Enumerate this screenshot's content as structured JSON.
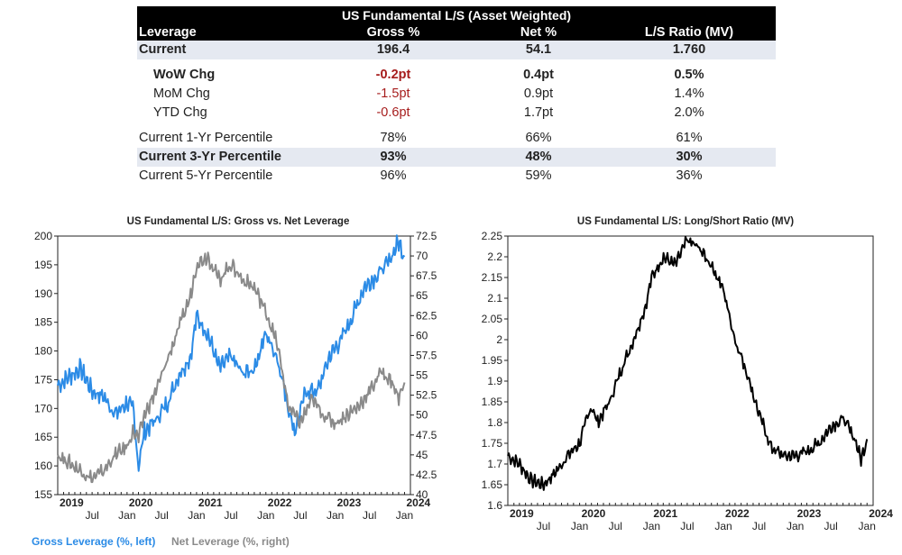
{
  "table": {
    "title": "US Fundamental L/S (Asset Weighted)",
    "headers": [
      "Leverage",
      "Gross %",
      "Net %",
      "L/S Ratio (MV)"
    ],
    "rows": [
      {
        "label": "Current",
        "gross": "196.4",
        "net": "54.1",
        "ratio": "1.760"
      },
      {
        "label": "WoW Chg",
        "gross": "-0.2pt",
        "net": "0.4pt",
        "ratio": "0.5%"
      },
      {
        "label": "MoM Chg",
        "gross": "-1.5pt",
        "net": "0.9pt",
        "ratio": "1.4%"
      },
      {
        "label": "YTD Chg",
        "gross": "-0.6pt",
        "net": "1.7pt",
        "ratio": "2.0%"
      },
      {
        "label": "Current 1-Yr Percentile",
        "gross": "78%",
        "net": "66%",
        "ratio": "61%"
      },
      {
        "label": "Current 3-Yr Percentile",
        "gross": "93%",
        "net": "48%",
        "ratio": "30%"
      },
      {
        "label": "Current 5-Yr Percentile",
        "gross": "96%",
        "net": "59%",
        "ratio": "36%"
      }
    ],
    "colors": {
      "negative": "#a61c1c",
      "header_bg": "#000000",
      "shade": "#e5e9f1"
    }
  },
  "chart_data": [
    {
      "type": "line",
      "title": "US Fundamental L/S: Gross vs. Net Leverage",
      "x_tick_labels": [
        "Jul",
        "Jan",
        "Jul",
        "Jan",
        "Jul",
        "Jan",
        "Jul",
        "Jan",
        "Jul",
        "Jan"
      ],
      "year_labels": [
        "2019",
        "2020",
        "2021",
        "2022",
        "2023",
        "2024"
      ],
      "xlim": [
        "2019-01",
        "2024-02"
      ],
      "y_left": {
        "ticks": [
          155,
          160,
          165,
          170,
          175,
          180,
          185,
          190,
          195,
          200
        ],
        "lim": [
          155,
          200
        ]
      },
      "y_right": {
        "ticks": [
          "40",
          "42.5",
          "45",
          "47.5",
          "50",
          "52.5",
          "55",
          "57.5",
          "60",
          "62.5",
          "65",
          "67.5",
          "70",
          "72.5"
        ],
        "lim": [
          40,
          72.5
        ]
      },
      "legend": [
        "Gross Leverage (%, left)",
        "Net Leverage (%, right)"
      ],
      "legend_placement": "bottom",
      "series": [
        {
          "name": "Gross Leverage (%, left)",
          "axis": "left",
          "color": "#2b8be6",
          "x": [
            "2019-01",
            "2019-03",
            "2019-05",
            "2019-07",
            "2019-09",
            "2019-11",
            "2020-01",
            "2020-02",
            "2020-03",
            "2020-04",
            "2020-06",
            "2020-08",
            "2020-10",
            "2020-12",
            "2021-01",
            "2021-03",
            "2021-05",
            "2021-07",
            "2021-09",
            "2021-11",
            "2022-01",
            "2022-03",
            "2022-05",
            "2022-06",
            "2022-08",
            "2022-10",
            "2022-12",
            "2023-02",
            "2023-04",
            "2023-06",
            "2023-08",
            "2023-10",
            "2023-12",
            "2024-01"
          ],
          "y": [
            174,
            175.5,
            177,
            173,
            172,
            169,
            171,
            170,
            160,
            166,
            168,
            171,
            176,
            179,
            186,
            183,
            177,
            179,
            176,
            177,
            183,
            179,
            170,
            166,
            173,
            173,
            179,
            182,
            186,
            191,
            193,
            195,
            199,
            196.4
          ]
        },
        {
          "name": "Net Leverage (%, right)",
          "axis": "right",
          "color": "#8a8a8a",
          "x": [
            "2019-01",
            "2019-03",
            "2019-05",
            "2019-07",
            "2019-09",
            "2019-11",
            "2020-01",
            "2020-02",
            "2020-03",
            "2020-04",
            "2020-06",
            "2020-08",
            "2020-10",
            "2020-12",
            "2021-01",
            "2021-03",
            "2021-05",
            "2021-07",
            "2021-09",
            "2021-11",
            "2022-01",
            "2022-03",
            "2022-05",
            "2022-07",
            "2022-09",
            "2022-11",
            "2023-01",
            "2023-03",
            "2023-05",
            "2023-07",
            "2023-09",
            "2023-11",
            "2023-12",
            "2024-01"
          ],
          "y": [
            45,
            44,
            43,
            42,
            43,
            45,
            46,
            48,
            47,
            50,
            53,
            57,
            61,
            65,
            69,
            70,
            67,
            69,
            67,
            66,
            63,
            59,
            51,
            49,
            52,
            50,
            49,
            50,
            51,
            53,
            55.5,
            54,
            52,
            54.1
          ]
        }
      ]
    },
    {
      "type": "line",
      "title": "US Fundamental L/S: Long/Short Ratio (MV)",
      "x_tick_labels": [
        "Jul",
        "Jan",
        "Jul",
        "Jan",
        "Jul",
        "Jan",
        "Jul",
        "Jan",
        "Jul",
        "Jan"
      ],
      "year_labels": [
        "2019",
        "2020",
        "2021",
        "2022",
        "2023",
        "2024"
      ],
      "xlim": [
        "2019-01",
        "2024-02"
      ],
      "y": {
        "ticks": [
          "1.6",
          "1.65",
          "1.7",
          "1.75",
          "1.8",
          "1.85",
          "1.9",
          "1.95",
          "2",
          "2.05",
          "2.1",
          "2.15",
          "2.2",
          "2.25"
        ],
        "lim": [
          1.6,
          2.25
        ]
      },
      "series": [
        {
          "color": "#000000",
          "x": [
            "2019-01",
            "2019-03",
            "2019-05",
            "2019-07",
            "2019-09",
            "2019-11",
            "2020-01",
            "2020-02",
            "2020-03",
            "2020-04",
            "2020-06",
            "2020-08",
            "2020-10",
            "2020-12",
            "2021-01",
            "2021-03",
            "2021-05",
            "2021-07",
            "2021-09",
            "2021-11",
            "2022-01",
            "2022-03",
            "2022-05",
            "2022-07",
            "2022-09",
            "2022-11",
            "2023-01",
            "2023-03",
            "2023-05",
            "2023-07",
            "2023-09",
            "2023-11",
            "2023-12",
            "2024-01"
          ],
          "y": [
            1.72,
            1.7,
            1.66,
            1.65,
            1.68,
            1.72,
            1.75,
            1.8,
            1.84,
            1.8,
            1.85,
            1.93,
            2.0,
            2.08,
            2.15,
            2.2,
            2.18,
            2.24,
            2.22,
            2.18,
            2.12,
            2.0,
            1.92,
            1.82,
            1.74,
            1.72,
            1.72,
            1.73,
            1.75,
            1.79,
            1.81,
            1.76,
            1.71,
            1.76
          ]
        }
      ]
    }
  ]
}
